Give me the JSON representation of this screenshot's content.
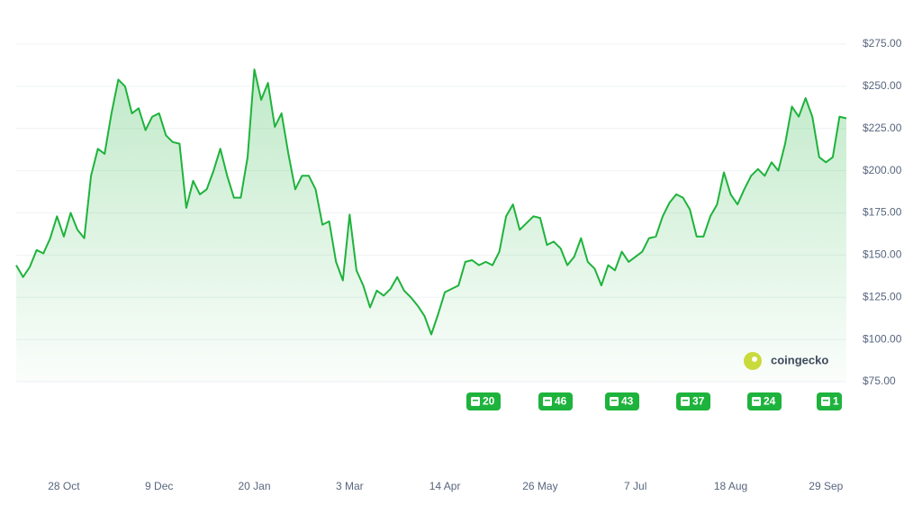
{
  "chart_data": {
    "type": "area",
    "color": "#1eb33c",
    "ylim": [
      75,
      275
    ],
    "yticks": [
      {
        "value": 75,
        "label": "$75.00"
      },
      {
        "value": 100,
        "label": "$100.00"
      },
      {
        "value": 125,
        "label": "$125.00"
      },
      {
        "value": 150,
        "label": "$150.00"
      },
      {
        "value": 175,
        "label": "$175.00"
      },
      {
        "value": 200,
        "label": "$200.00"
      },
      {
        "value": 225,
        "label": "$225.00"
      },
      {
        "value": 250,
        "label": "$250.00"
      },
      {
        "value": 275,
        "label": "$275.00"
      }
    ],
    "grid": true,
    "categories": [
      null,
      null,
      null,
      null,
      null,
      null,
      null,
      "28 Oct",
      null,
      null,
      null,
      null,
      null,
      null,
      null,
      null,
      null,
      null,
      null,
      null,
      null,
      "9 Dec",
      null,
      null,
      null,
      null,
      null,
      null,
      null,
      null,
      null,
      null,
      null,
      null,
      null,
      "20 Jan",
      null,
      null,
      null,
      null,
      null,
      null,
      null,
      null,
      null,
      null,
      null,
      null,
      null,
      "3 Mar",
      null,
      null,
      null,
      null,
      null,
      null,
      null,
      null,
      null,
      null,
      null,
      null,
      null,
      "14 Apr",
      null,
      null,
      null,
      null,
      null,
      null,
      null,
      null,
      null,
      null,
      null,
      null,
      null,
      "26 May",
      null,
      null,
      null,
      null,
      null,
      null,
      null,
      null,
      null,
      null,
      null,
      null,
      null,
      "7 Jul",
      null,
      null,
      null,
      null,
      null,
      null,
      null,
      null,
      null,
      null,
      null,
      null,
      null,
      "18 Aug",
      null,
      null,
      null,
      null,
      null,
      null,
      null,
      null,
      null,
      null,
      null,
      null,
      null,
      "29 Sep",
      null,
      null,
      null
    ],
    "values": [
      144,
      137,
      143,
      153,
      151,
      160,
      173,
      161,
      175,
      165,
      160,
      197,
      213,
      210,
      234,
      254,
      250,
      234,
      237,
      224,
      232,
      234,
      221,
      217,
      216,
      178,
      194,
      186,
      189,
      200,
      213,
      197,
      184,
      184,
      208,
      260,
      242,
      252,
      226,
      234,
      210,
      189,
      197,
      197,
      189,
      168,
      170,
      146,
      135,
      174,
      141,
      132,
      119,
      129,
      126,
      130,
      137,
      129,
      125,
      120,
      114,
      103,
      115,
      128,
      130,
      132,
      146,
      147,
      144,
      146,
      144,
      152,
      173,
      180,
      165,
      169,
      173,
      172,
      156,
      158,
      154,
      144,
      149,
      160,
      146,
      142,
      132,
      144,
      141,
      152,
      146,
      149,
      152,
      160,
      161,
      173,
      181,
      186,
      184,
      177,
      161,
      161,
      173,
      180,
      199,
      186,
      180,
      189,
      197,
      201,
      197,
      205,
      200,
      216,
      238,
      232,
      243,
      232,
      208,
      205,
      208,
      232,
      231
    ],
    "news_counts": [
      20,
      46,
      43,
      37,
      24,
      1
    ],
    "watermark": "coingecko"
  }
}
